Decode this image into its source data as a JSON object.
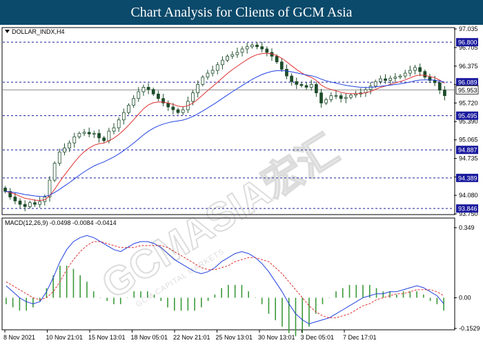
{
  "header": {
    "title": "Chart Analysis for Clients of GCM Asia"
  },
  "watermark": {
    "text": "GCMASIA宏汇",
    "subtext": "GCM CAPITAL MARKETS"
  },
  "colors": {
    "title_bg": "#0b4a6b",
    "candle": "#1e4d2b",
    "ma_fast": "#e03030",
    "ma_slow": "#2040e0",
    "level_line": "#1a1a9e",
    "level_label_bg": "#1a1a9e",
    "current_label_bg": "#ffffff",
    "macd_line": "#2040e0",
    "signal_line": "#e03030",
    "histogram": "#3a9a3a"
  },
  "chart_data": [
    {
      "type": "candlestick",
      "symbol_label": "DOLLAR_INDX,H4",
      "ylim": [
        93.75,
        97.035
      ],
      "y_ticks": [
        "97.035",
        "96.705",
        "96.375",
        "96.050",
        "95.720",
        "95.390",
        "95.065",
        "94.735",
        "94.405",
        "94.080",
        "93.750"
      ],
      "x_ticks": [
        "8 Nov 2021",
        "10 Nov 21:01",
        "15 Nov 13:01",
        "18 Nov 05:01",
        "22 Nov 21:01",
        "25 Nov 13:01",
        "30 Nov 13:01",
        "3 Dec 05:01",
        "7 Dec 17:01"
      ],
      "levels": [
        96.8,
        96.089,
        95.495,
        94.887,
        94.389,
        93.846
      ],
      "level_labels": [
        "96.800",
        "96.089",
        "95.495",
        "94.887",
        "94.389",
        "93.846"
      ],
      "current_price": 95.953,
      "current_label": "95.953",
      "close": [
        94.15,
        94.05,
        93.98,
        93.92,
        93.88,
        93.95,
        93.92,
        93.97,
        94.05,
        94.35,
        94.65,
        94.85,
        94.92,
        95.01,
        95.12,
        95.18,
        95.2,
        95.17,
        95.18,
        95.1,
        95.05,
        95.22,
        95.28,
        95.42,
        95.55,
        95.68,
        95.8,
        95.92,
        96.0,
        95.96,
        95.88,
        95.8,
        95.72,
        95.65,
        95.6,
        95.55,
        95.6,
        95.75,
        95.9,
        96.05,
        96.18,
        96.25,
        96.3,
        96.4,
        96.48,
        96.55,
        96.58,
        96.62,
        96.68,
        96.72,
        96.75,
        96.72,
        96.68,
        96.62,
        96.55,
        96.45,
        96.32,
        96.2,
        96.1,
        96.05,
        96.03,
        96.0,
        96.05,
        95.9,
        95.72,
        95.78,
        95.85,
        95.85,
        95.8,
        95.82,
        95.86,
        95.88,
        95.9,
        95.96,
        96.02,
        96.1,
        96.15,
        96.12,
        96.16,
        96.18,
        96.2,
        96.25,
        96.3,
        96.35,
        96.28,
        96.18,
        96.12,
        96.08,
        95.95,
        95.85
      ]
    },
    {
      "type": "line",
      "indicator_label": "MACD(12,26,9) -0.0498 -0.0084 -0.0414",
      "ylim": [
        -0.1529,
        0.349
      ],
      "y_ticks": [
        "0.349",
        "0.00",
        "-0.1529"
      ],
      "series": [
        {
          "values": [
            0.06,
            0.03,
            0.0,
            -0.02,
            -0.03,
            -0.02,
            0.03,
            0.1,
            0.18,
            0.24,
            0.28,
            0.3,
            0.31,
            0.3,
            0.28,
            0.26,
            0.24,
            0.23,
            0.25,
            0.27,
            0.28,
            0.28,
            0.27,
            0.25,
            0.22,
            0.19,
            0.17,
            0.15,
            0.13,
            0.12,
            0.13,
            0.15,
            0.18,
            0.2,
            0.22,
            0.23,
            0.22,
            0.2,
            0.17,
            0.13,
            0.08,
            0.03,
            -0.03,
            -0.08,
            -0.11,
            -0.13,
            -0.12,
            -0.11,
            -0.1,
            -0.08,
            -0.06,
            -0.04,
            -0.02,
            0.0,
            0.01,
            0.02,
            0.02,
            0.03,
            0.03,
            0.04,
            0.05,
            0.06,
            0.05,
            0.03,
            0.01,
            -0.03
          ]
        },
        {
          "values": [
            0.08,
            0.06,
            0.04,
            0.02,
            0.0,
            -0.01,
            0.0,
            0.03,
            0.08,
            0.14,
            0.19,
            0.23,
            0.26,
            0.28,
            0.28,
            0.27,
            0.26,
            0.25,
            0.25,
            0.25,
            0.26,
            0.26,
            0.26,
            0.26,
            0.25,
            0.23,
            0.21,
            0.19,
            0.17,
            0.15,
            0.14,
            0.14,
            0.15,
            0.16,
            0.18,
            0.19,
            0.2,
            0.2,
            0.19,
            0.18,
            0.15,
            0.12,
            0.08,
            0.04,
            0.0,
            -0.04,
            -0.07,
            -0.09,
            -0.1,
            -0.1,
            -0.09,
            -0.08,
            -0.06,
            -0.04,
            -0.03,
            -0.01,
            0.0,
            0.01,
            0.02,
            0.02,
            0.03,
            0.04,
            0.04,
            0.04,
            0.03,
            0.01
          ]
        }
      ]
    }
  ]
}
